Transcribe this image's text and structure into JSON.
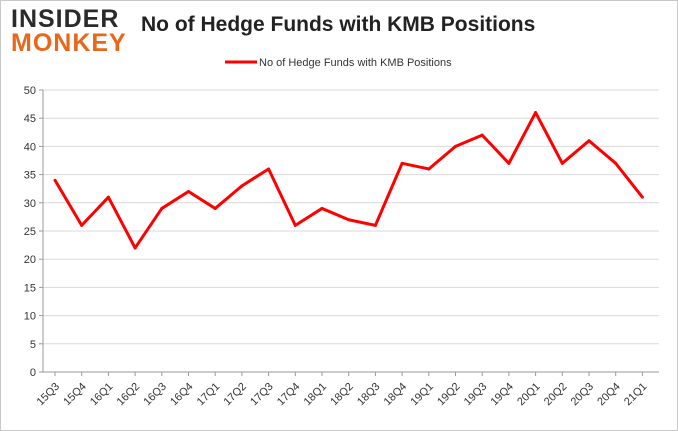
{
  "logo": {
    "line1": "INSIDER",
    "line2": "MONKEY"
  },
  "chart_data": {
    "type": "line",
    "title": "No of Hedge Funds with KMB Positions",
    "categories": [
      "15Q3",
      "15Q4",
      "16Q1",
      "16Q2",
      "16Q3",
      "16Q4",
      "17Q1",
      "17Q2",
      "17Q3",
      "17Q4",
      "18Q1",
      "18Q2",
      "18Q3",
      "18Q4",
      "19Q1",
      "19Q2",
      "19Q3",
      "19Q4",
      "20Q1",
      "20Q2",
      "20Q3",
      "20Q4",
      "21Q1"
    ],
    "series": [
      {
        "name": "No of Hedge Funds with KMB Positions",
        "color": "#ff0000",
        "values": [
          34,
          26,
          31,
          22,
          29,
          32,
          29,
          33,
          36,
          26,
          29,
          27,
          26,
          37,
          36,
          40,
          42,
          37,
          46,
          37,
          41,
          37,
          31
        ]
      }
    ],
    "yticks": [
      0,
      5,
      10,
      15,
      20,
      25,
      30,
      35,
      40,
      45,
      50
    ],
    "ylim": [
      0,
      50
    ],
    "grid": true,
    "legend": "top-center"
  }
}
